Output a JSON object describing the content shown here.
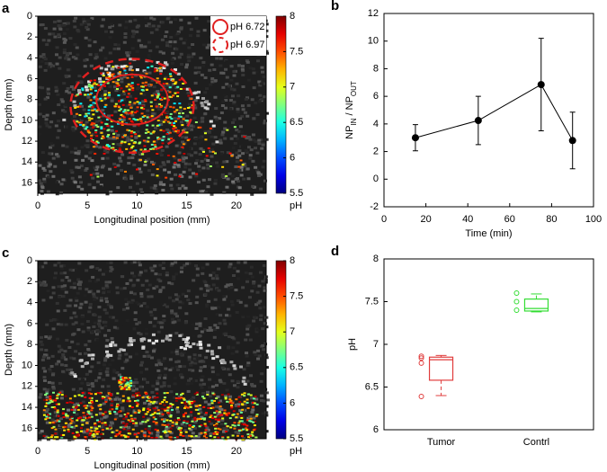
{
  "chart_data": [
    {
      "panel": "a",
      "type": "image",
      "colormap": "jet",
      "xlabel": "Longitudinal position (mm)",
      "ylabel": "Depth (mm)",
      "xlim": [
        0,
        23
      ],
      "xticks": [
        0,
        5,
        10,
        15,
        20
      ],
      "ylim": [
        0,
        17
      ],
      "yticks": [
        0,
        2,
        4,
        6,
        8,
        10,
        12,
        14,
        16
      ],
      "y_reversed": true,
      "colorbar": {
        "label": "pH",
        "lim": [
          5.5,
          8
        ],
        "ticks": [
          5.5,
          6,
          6.5,
          7,
          7.5,
          8
        ]
      },
      "legend": [
        {
          "label": "pH 6.72",
          "style": "solid"
        },
        {
          "label": "pH 6.97",
          "style": "dashed"
        }
      ],
      "legend_color": "#e02020",
      "legend_position": "upper right"
    },
    {
      "panel": "b",
      "type": "line",
      "xlabel": "Time (min)",
      "ylabel": [
        {
          "text": "NP"
        },
        {
          "text": "IN",
          "sub": true
        },
        {
          "text": " / NP"
        },
        {
          "text": "OUT",
          "sub": true
        }
      ],
      "x": [
        15,
        45,
        75,
        90
      ],
      "values": [
        3.0,
        4.25,
        6.85,
        2.8
      ],
      "errors": [
        0.95,
        1.75,
        3.35,
        2.05
      ],
      "color": "#000000",
      "xlim": [
        0,
        100
      ],
      "xticks": [
        0,
        20,
        40,
        60,
        80,
        100
      ],
      "ylim": [
        -2,
        12
      ],
      "yticks": [
        -2,
        0,
        2,
        4,
        6,
        8,
        10,
        12
      ]
    },
    {
      "panel": "c",
      "type": "image",
      "colormap": "jet",
      "xlabel": "Longitudinal position (mm)",
      "ylabel": "Depth (mm)",
      "xlim": [
        0,
        23
      ],
      "xticks": [
        0,
        5,
        10,
        15,
        20
      ],
      "ylim": [
        0,
        17
      ],
      "yticks": [
        0,
        2,
        4,
        6,
        8,
        10,
        12,
        14,
        16
      ],
      "y_reversed": true,
      "colorbar": {
        "label": "pH",
        "lim": [
          5.5,
          8
        ],
        "ticks": [
          5.5,
          6,
          6.5,
          7,
          7.5,
          8
        ]
      }
    },
    {
      "panel": "d",
      "type": "box",
      "ylabel": "pH",
      "categories": [
        "Tumor",
        "Contrl"
      ],
      "boxes": [
        {
          "color": "#e03c3c",
          "whisker_low": 6.4,
          "q1": 6.58,
          "median": 6.82,
          "q3": 6.85,
          "whisker_high": 6.87,
          "outliers": [
            6.86,
            6.84,
            6.78,
            6.39
          ]
        },
        {
          "color": "#33dd33",
          "whisker_low": 7.38,
          "q1": 7.39,
          "median": 7.42,
          "q3": 7.53,
          "whisker_high": 7.59,
          "outliers": [
            7.6,
            7.5,
            7.4
          ]
        }
      ],
      "ylim": [
        6,
        8
      ],
      "yticks": [
        6,
        6.5,
        7,
        7.5,
        8
      ]
    }
  ]
}
